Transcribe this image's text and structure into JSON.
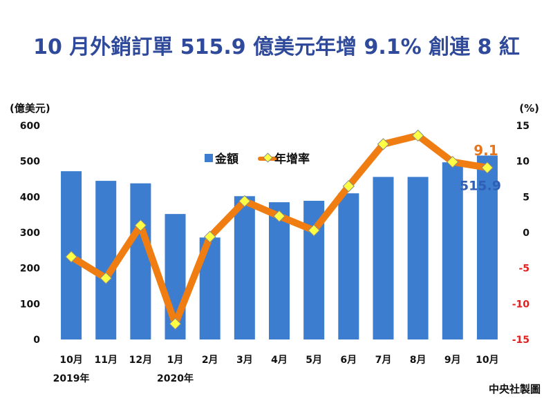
{
  "chart_data": {
    "type": "bar+line",
    "title": "10 月外銷訂單 515.9 億美元年增 9.1% 創連 8 紅",
    "categories": [
      "10月",
      "11月",
      "12月",
      "1月",
      "2月",
      "3月",
      "4月",
      "5月",
      "6月",
      "7月",
      "8月",
      "9月",
      "10月"
    ],
    "year_labels": [
      {
        "index": 0,
        "label": "2019年"
      },
      {
        "index": 3,
        "label": "2020年"
      }
    ],
    "left_axis": {
      "unit": "(億美元)",
      "ylim": [
        0,
        600
      ],
      "ticks": [
        0,
        100,
        200,
        300,
        400,
        500,
        600
      ]
    },
    "right_axis": {
      "unit": "(%)",
      "ylim": [
        -15,
        15
      ],
      "ticks": [
        15,
        10,
        5,
        0,
        -5,
        -10,
        -15
      ]
    },
    "series": [
      {
        "name": "金額",
        "type": "bar",
        "axis": "left",
        "color": "#3c7dd0",
        "values": [
          472,
          445,
          438,
          352,
          286,
          402,
          385,
          389,
          410,
          456,
          456,
          497,
          515.9
        ]
      },
      {
        "name": "年增率",
        "type": "line",
        "axis": "right",
        "color": "#f07d11",
        "marker_color": "#ffff44",
        "values": [
          -3.4,
          -6.4,
          1.0,
          -12.8,
          -0.6,
          4.4,
          2.3,
          0.3,
          6.5,
          12.4,
          13.6,
          9.9,
          9.1
        ]
      }
    ],
    "annotations": [
      {
        "text": "9.1",
        "series": "年增率",
        "index": 12,
        "color": "#e8751a"
      },
      {
        "text": "515.9",
        "series": "金額",
        "index": 12,
        "color": "#2f5fb5"
      }
    ],
    "legend_position": "top-center",
    "grid": false,
    "credit": "中央社製圖"
  },
  "colors": {
    "title": "#2f4a9a",
    "negative_tick": "#e02020",
    "tick": "#111111"
  }
}
